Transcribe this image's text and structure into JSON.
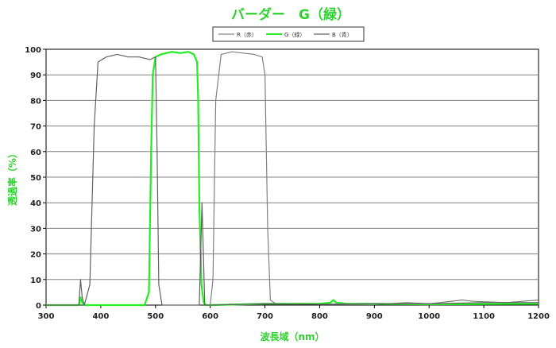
{
  "colors": {
    "title": "#2fd02f",
    "axis_label": "#2fd02f",
    "grid": "#808080",
    "red_series": "#808080",
    "green_series": "#22ee22",
    "blue_series": "#606060"
  },
  "chart_data": {
    "type": "line",
    "title": "バーダー　G（緑）",
    "xlabel": "波長域（nm）",
    "ylabel": "透過率（%）",
    "xlim": [
      300,
      1200
    ],
    "ylim": [
      0,
      100
    ],
    "x_ticks": [
      300,
      400,
      500,
      600,
      700,
      800,
      900,
      1000,
      1100,
      1200
    ],
    "y_ticks": [
      0,
      10,
      20,
      30,
      40,
      50,
      60,
      70,
      80,
      90,
      100
    ],
    "x_tick_labels": [
      "300",
      "400",
      "500",
      "600",
      "700",
      "800",
      "900",
      "1000",
      "1100",
      "1200"
    ],
    "y_tick_labels": [
      "0",
      "10",
      "20",
      "30",
      "40",
      "50",
      "60",
      "70",
      "80",
      "90",
      "100"
    ],
    "grid": "horizontal",
    "legend_position": "top-center",
    "series": [
      {
        "name": "R（赤）",
        "color_key": "red_series",
        "x": [
          600,
          605,
          610,
          620,
          640,
          660,
          680,
          695,
          700,
          705,
          710,
          720,
          800,
          900,
          960,
          1000,
          1060,
          1080,
          1140,
          1200
        ],
        "y": [
          0,
          10,
          80,
          98,
          99,
          98.5,
          98,
          97,
          90,
          30,
          2,
          0.5,
          0.3,
          0.2,
          1,
          0.5,
          2,
          1.5,
          1,
          2
        ]
      },
      {
        "name": "G（緑）",
        "color_key": "green_series",
        "x": [
          300,
          360,
          363,
          366,
          370,
          480,
          488,
          492,
          495,
          500,
          510,
          530,
          545,
          560,
          570,
          576,
          578,
          580,
          584,
          588,
          592,
          600,
          700,
          800,
          820,
          825,
          830,
          850,
          900,
          1000,
          1200
        ],
        "y": [
          0,
          0,
          3,
          1,
          0,
          0,
          5,
          60,
          90,
          97,
          98,
          99,
          98.5,
          99,
          98,
          95,
          80,
          40,
          8,
          1,
          0,
          0,
          0.5,
          0.5,
          1,
          2,
          1,
          0.5,
          0.5,
          0.3,
          0.5
        ]
      },
      {
        "name": "B（青）",
        "color_key": "blue_series",
        "x": [
          300,
          360,
          363,
          366,
          370,
          380,
          388,
          395,
          410,
          430,
          450,
          470,
          490,
          500,
          503,
          506,
          512,
          520,
          560,
          580,
          585,
          590,
          600,
          700,
          800,
          900,
          1000,
          1100,
          1200
        ],
        "y": [
          0,
          0,
          10,
          3,
          0,
          8,
          70,
          95,
          97,
          98,
          97,
          97,
          96,
          97,
          60,
          8,
          0,
          0,
          0,
          0,
          40,
          0,
          0,
          0.5,
          0.3,
          0.5,
          0.5,
          1,
          1
        ]
      }
    ]
  }
}
